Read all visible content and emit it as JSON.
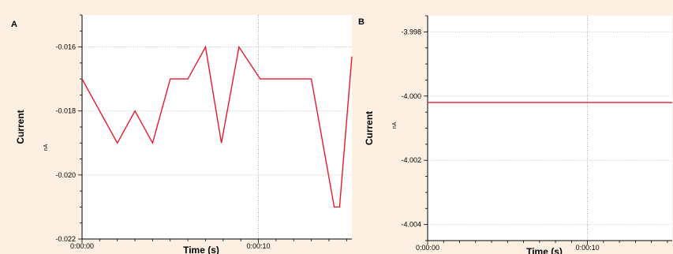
{
  "chart_data": [
    {
      "id": "A",
      "panel_label": "A",
      "type": "line",
      "xlabel": "Time (s)",
      "ylabel": "Current",
      "y_unit": "nA",
      "ylim": [
        -0.022,
        -0.015
      ],
      "y_ticks": [
        -0.016,
        -0.018,
        -0.02,
        -0.022
      ],
      "y_tick_labels": [
        "-0.016",
        "-0.018",
        "-0.020",
        "-0.022"
      ],
      "xlim": [
        0,
        15.3
      ],
      "x_ticks": [
        0,
        10
      ],
      "x_tick_labels": [
        "0:00:00",
        "0:00:10"
      ],
      "grid": true,
      "line_color": "#e8192c",
      "series": [
        {
          "x": [
            0,
            2.0,
            3.0,
            4.0,
            5.0,
            6.0,
            7.0,
            7.9,
            8.9,
            10.1,
            11.2,
            12.0,
            13.0,
            14.3,
            14.6,
            15.3
          ],
          "y": [
            -0.017,
            -0.019,
            -0.018,
            -0.019,
            -0.017,
            -0.017,
            -0.016,
            -0.019,
            -0.016,
            -0.017,
            -0.017,
            -0.017,
            -0.017,
            -0.021,
            -0.021,
            -0.0163
          ]
        }
      ]
    },
    {
      "id": "B",
      "panel_label": "B",
      "type": "line",
      "xlabel": "Time (s)",
      "ylabel": "Current",
      "y_unit": "nA",
      "ylim": [
        -4.0045,
        -3.9975
      ],
      "y_ticks": [
        -3.998,
        -4.0,
        -4.002,
        -4.004
      ],
      "y_tick_labels": [
        "-3.998",
        "-4.000",
        "-4.002",
        "-4.004"
      ],
      "xlim": [
        0,
        15.3
      ],
      "x_ticks": [
        0,
        10
      ],
      "x_tick_labels": [
        "0:00:00",
        "0:00:10"
      ],
      "grid": true,
      "line_color": "#e8192c",
      "series": [
        {
          "x": [
            0,
            15.3
          ],
          "y": [
            -4.0002,
            -4.0002
          ]
        }
      ]
    }
  ]
}
